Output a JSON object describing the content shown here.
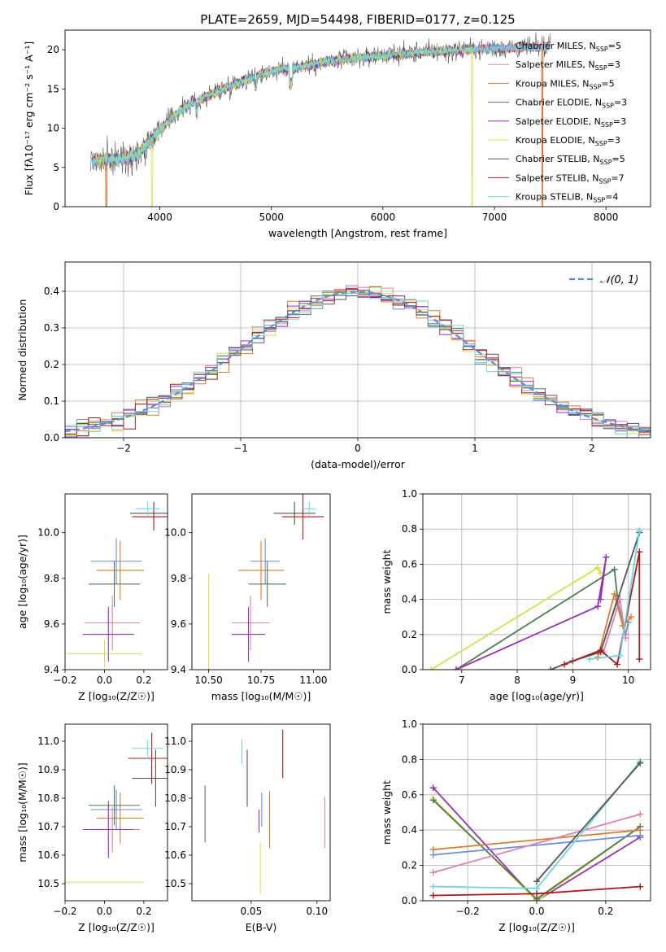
{
  "figure_title": "PLATE=2659, MJD=54498, FIBERID=0177, z=0.125",
  "colors": {
    "Chabrier MILES": "#6a8ed8",
    "Salpeter MILES": "#e37fb0",
    "Kroupa MILES": "#e07a28",
    "Chabrier ELODIE": "#4f7a57",
    "Salpeter ELODIE": "#9a2fb8",
    "Kroupa ELODIE": "#d6e04a",
    "Chabrier STELIB": "#555555",
    "Salpeter STELIB": "#b01818",
    "Kroupa STELIB": "#6ad6e0"
  },
  "chart_data": [
    {
      "id": "spectrum",
      "type": "line",
      "xlabel": "wavelength [Angstrom, rest frame]",
      "ylabel": "Flux [fλ10⁻¹⁷ erg cm⁻² s⁻¹ A⁻¹]",
      "xlim": [
        3150,
        8400
      ],
      "ylim": [
        0,
        22.5
      ],
      "xticks": [
        4000,
        5000,
        6000,
        7000,
        8000
      ],
      "yticks": [
        0,
        5,
        10,
        15,
        20
      ],
      "legend_position": "top-right",
      "legend": [
        {
          "name": "Chabrier MILES",
          "label": "Chabrier MILES, N_SSP=5"
        },
        {
          "name": "Salpeter MILES",
          "label": "Salpeter MILES, N_SSP=3"
        },
        {
          "name": "Kroupa MILES",
          "label": "Kroupa MILES, N_SSP=5"
        },
        {
          "name": "Chabrier ELODIE",
          "label": "Chabrier ELODIE, N_SSP=3"
        },
        {
          "name": "Salpeter ELODIE",
          "label": "Salpeter ELODIE, N_SSP=3"
        },
        {
          "name": "Kroupa ELODIE",
          "label": "Kroupa ELODIE, N_SSP=3"
        },
        {
          "name": "Chabrier STELIB",
          "label": "Chabrier STELIB, N_SSP=5"
        },
        {
          "name": "Salpeter STELIB",
          "label": "Salpeter STELIB, N_SSP=7"
        },
        {
          "name": "Kroupa STELIB",
          "label": "Kroupa STELIB, N_SSP=4"
        }
      ],
      "continuum": {
        "x": [
          3400,
          3600,
          3800,
          4000,
          4200,
          4500,
          4800,
          5000,
          5300,
          5600,
          6000,
          6500,
          7000,
          7400,
          7500
        ],
        "y": [
          5.8,
          6.0,
          6.6,
          9.8,
          12.5,
          14.6,
          16.4,
          17.3,
          17.9,
          18.7,
          19.3,
          19.8,
          20.2,
          20.3,
          20.6
        ]
      },
      "dips": [
        {
          "x": 3520,
          "series": [
            "Salpeter STELIB",
            "Kroupa MILES"
          ]
        },
        {
          "x": 3930,
          "series": [
            "Kroupa ELODIE"
          ]
        },
        {
          "x": 6800,
          "series": [
            "Kroupa ELODIE"
          ]
        },
        {
          "x": 7430,
          "series": [
            "Salpeter STELIB",
            "Kroupa MILES"
          ]
        }
      ]
    },
    {
      "id": "residual-histogram",
      "type": "line",
      "xlabel": "(data-model)/error",
      "ylabel": "Normed distribution",
      "xlim": [
        -2.5,
        2.5
      ],
      "ylim": [
        0,
        0.48
      ],
      "xticks": [
        -2,
        -1,
        0,
        1,
        2
      ],
      "yticks": [
        0.0,
        0.1,
        0.2,
        0.3,
        0.4
      ],
      "grid": true,
      "legend_position": "top-right",
      "reference_curve": {
        "label": "𝒩(0, 1)",
        "mean": 0,
        "sigma": 1,
        "color": "#5b8fd6"
      },
      "bin_width": 0.1
    },
    {
      "id": "age-vs-Z",
      "type": "scatter",
      "xlabel": "Z [log₁₀(Z/Z☉)]",
      "ylabel": "age  [log₁₀(age/yr)]",
      "xlim": [
        -0.2,
        0.32
      ],
      "ylim": [
        9.4,
        10.17
      ],
      "xticks": [
        -0.2,
        0.0,
        0.2
      ],
      "yticks": [
        9.4,
        9.6,
        9.8,
        10.0
      ],
      "points": [
        {
          "series": "Chabrier MILES",
          "x": 0.06,
          "xerr": 0.13,
          "y": 9.875,
          "yerr": 0.1
        },
        {
          "series": "Salpeter MILES",
          "x": 0.04,
          "xerr": 0.14,
          "y": 9.605,
          "yerr": 0.12
        },
        {
          "series": "Kroupa MILES",
          "x": 0.08,
          "xerr": 0.12,
          "y": 9.835,
          "yerr": 0.13
        },
        {
          "series": "Chabrier ELODIE",
          "x": 0.05,
          "xerr": 0.13,
          "y": 9.775,
          "yerr": 0.1
        },
        {
          "series": "Salpeter ELODIE",
          "x": 0.02,
          "xerr": 0.13,
          "y": 9.555,
          "yerr": 0.12
        },
        {
          "series": "Kroupa ELODIE",
          "x": 0.0,
          "xerr": 0.19,
          "y": 9.47,
          "yerr": 0.06
        },
        {
          "series": "Chabrier STELIB",
          "x": 0.25,
          "xerr": 0.12,
          "y": 10.085,
          "yerr": 0.05
        },
        {
          "series": "Salpeter STELIB",
          "x": 0.25,
          "xerr": 0.11,
          "y": 10.07,
          "yerr": 0.06
        },
        {
          "series": "Kroupa STELIB",
          "x": 0.22,
          "xerr": 0.06,
          "y": 10.105,
          "yerr": 0.03
        }
      ]
    },
    {
      "id": "age-vs-mass",
      "type": "scatter",
      "xlabel": "mass [log₁₀(M/M☉)]",
      "ylabel": "",
      "xlim": [
        10.42,
        11.08
      ],
      "ylim": [
        9.4,
        10.17
      ],
      "xticks": [
        10.5,
        10.75,
        11.0
      ],
      "yticks": [
        9.4,
        9.6,
        9.8,
        10.0
      ],
      "points": [
        {
          "series": "Chabrier MILES",
          "x": 10.77,
          "xerr": 0.07,
          "y": 9.875,
          "yerr": 0.1
        },
        {
          "series": "Salpeter MILES",
          "x": 10.7,
          "xerr": 0.09,
          "y": 9.605,
          "yerr": 0.12
        },
        {
          "series": "Kroupa MILES",
          "x": 10.75,
          "xerr": 0.11,
          "y": 9.835,
          "yerr": 0.13
        },
        {
          "series": "Chabrier ELODIE",
          "x": 10.78,
          "xerr": 0.09,
          "y": 9.775,
          "yerr": 0.1
        },
        {
          "series": "Salpeter ELODIE",
          "x": 10.69,
          "xerr": 0.08,
          "y": 9.555,
          "yerr": 0.12
        },
        {
          "series": "Kroupa ELODIE",
          "x": 10.5,
          "xerr": 0.0,
          "y": 9.47,
          "yerr": 0.35
        },
        {
          "series": "Chabrier STELIB",
          "x": 10.91,
          "xerr": 0.1,
          "y": 10.085,
          "yerr": 0.05
        },
        {
          "series": "Salpeter STELIB",
          "x": 10.95,
          "xerr": 0.1,
          "y": 10.07,
          "yerr": 0.1
        },
        {
          "series": "Kroupa STELIB",
          "x": 10.98,
          "xerr": 0.03,
          "y": 10.105,
          "yerr": 0.03
        }
      ]
    },
    {
      "id": "mass-vs-Z",
      "type": "scatter",
      "xlabel": "Z [log₁₀(Z/Z☉)]",
      "ylabel": "mass [log₁₀(M/M☉)]",
      "xlim": [
        -0.2,
        0.32
      ],
      "ylim": [
        10.44,
        11.06
      ],
      "xticks": [
        -0.2,
        0.0,
        0.2
      ],
      "yticks": [
        10.5,
        10.6,
        10.7,
        10.8,
        10.9,
        11.0
      ],
      "points": [
        {
          "series": "Chabrier MILES",
          "x": 0.06,
          "xerr": 0.13,
          "y": 10.76,
          "yerr": 0.07
        },
        {
          "series": "Salpeter MILES",
          "x": 0.04,
          "xerr": 0.14,
          "y": 10.69,
          "yerr": 0.08
        },
        {
          "series": "Kroupa MILES",
          "x": 0.08,
          "xerr": 0.12,
          "y": 10.73,
          "yerr": 0.09
        },
        {
          "series": "Chabrier ELODIE",
          "x": 0.05,
          "xerr": 0.13,
          "y": 10.775,
          "yerr": 0.07
        },
        {
          "series": "Salpeter ELODIE",
          "x": 0.02,
          "xerr": 0.13,
          "y": 10.69,
          "yerr": 0.1
        },
        {
          "series": "Kroupa ELODIE",
          "x": 0.0,
          "xerr": 0.2,
          "y": 10.505,
          "yerr": 0.0
        },
        {
          "series": "Chabrier STELIB",
          "x": 0.26,
          "xerr": 0.12,
          "y": 10.87,
          "yerr": 0.1
        },
        {
          "series": "Salpeter STELIB",
          "x": 0.24,
          "xerr": 0.12,
          "y": 10.94,
          "yerr": 0.09
        },
        {
          "series": "Kroupa STELIB",
          "x": 0.22,
          "xerr": 0.08,
          "y": 10.975,
          "yerr": 0.03
        }
      ]
    },
    {
      "id": "mass-vs-EBV",
      "type": "scatter",
      "xlabel": "E(B-V)",
      "ylabel": "",
      "xlim": [
        0.005,
        0.11
      ],
      "ylim": [
        10.44,
        11.06
      ],
      "xticks": [
        0.05,
        0.1
      ],
      "yticks": [
        10.5,
        10.6,
        10.7,
        10.8,
        10.9,
        11.0
      ],
      "points": [
        {
          "series": "Chabrier ELODIE",
          "x": 0.015,
          "y": 10.745,
          "yerr": 0.1
        },
        {
          "series": "Kroupa STELIB",
          "x": 0.043,
          "y": 10.965,
          "yerr": 0.045
        },
        {
          "series": "Chabrier STELIB",
          "x": 0.047,
          "y": 10.87,
          "yerr": 0.1
        },
        {
          "series": "Salpeter ELODIE",
          "x": 0.056,
          "y": 10.72,
          "yerr": 0.04
        },
        {
          "series": "Kroupa ELODIE",
          "x": 0.057,
          "y": 10.555,
          "yerr": 0.09
        },
        {
          "series": "Chabrier MILES",
          "x": 0.058,
          "y": 10.76,
          "yerr": 0.06
        },
        {
          "series": "Kroupa MILES",
          "x": 0.064,
          "y": 10.725,
          "yerr": 0.1
        },
        {
          "series": "Salpeter STELIB",
          "x": 0.074,
          "y": 10.955,
          "yerr": 0.085
        },
        {
          "series": "Salpeter MILES",
          "x": 0.106,
          "y": 10.715,
          "yerr": 0.09
        }
      ]
    },
    {
      "id": "weight-vs-age",
      "type": "line",
      "xlabel": "age  [log₁₀(age/yr)]",
      "ylabel": "mass weight",
      "xlim": [
        6.3,
        10.4
      ],
      "ylim": [
        0,
        1.0
      ],
      "xticks": [
        7,
        8,
        9,
        10
      ],
      "yticks": [
        0.0,
        0.2,
        0.4,
        0.6,
        0.8,
        1.0
      ],
      "grid": true,
      "series": [
        {
          "name": "Kroupa ELODIE",
          "x": [
            6.45,
            9.45,
            9.5
          ],
          "y": [
            0.0,
            0.58,
            0.55
          ]
        },
        {
          "name": "Chabrier ELODIE",
          "x": [
            6.9,
            9.75,
            9.8
          ],
          "y": [
            0.0,
            0.57,
            0.42
          ]
        },
        {
          "name": "Salpeter ELODIE",
          "x": [
            6.9,
            9.45,
            9.6,
            9.5
          ],
          "y": [
            0.0,
            0.36,
            0.64,
            0.4
          ]
        },
        {
          "name": "Chabrier MILES",
          "x": [
            9.5,
            9.8,
            9.95,
            10.0
          ],
          "y": [
            0.1,
            0.4,
            0.2,
            0.27
          ]
        },
        {
          "name": "Salpeter MILES",
          "x": [
            9.55,
            9.85,
            9.95
          ],
          "y": [
            0.1,
            0.4,
            0.18
          ]
        },
        {
          "name": "Kroupa MILES",
          "x": [
            9.45,
            9.75,
            9.9,
            10.05
          ],
          "y": [
            0.07,
            0.43,
            0.25,
            0.3
          ]
        },
        {
          "name": "Chabrier STELIB",
          "x": [
            8.6,
            9.0,
            9.5,
            10.2
          ],
          "y": [
            0.0,
            0.05,
            0.1,
            0.78
          ]
        },
        {
          "name": "Salpeter STELIB",
          "x": [
            8.85,
            9.5,
            9.8,
            10.2,
            10.2
          ],
          "y": [
            0.03,
            0.11,
            0.03,
            0.67,
            0.06
          ]
        },
        {
          "name": "Kroupa STELIB",
          "x": [
            9.3,
            9.85,
            10.2
          ],
          "y": [
            0.06,
            0.08,
            0.79
          ]
        }
      ]
    },
    {
      "id": "weight-vs-Z",
      "type": "line",
      "xlabel": "Z [log₁₀(Z/Z☉)]",
      "ylabel": "mass weight",
      "xlim": [
        -0.33,
        0.33
      ],
      "ylim": [
        0,
        1.0
      ],
      "xticks": [
        -0.2,
        0.0,
        0.2
      ],
      "yticks": [
        0.0,
        0.2,
        0.4,
        0.6,
        0.8,
        1.0
      ],
      "grid": true,
      "series": [
        {
          "name": "Salpeter ELODIE",
          "x": [
            -0.3,
            0.0,
            0.3
          ],
          "y": [
            0.64,
            0.0,
            0.36
          ]
        },
        {
          "name": "Kroupa ELODIE",
          "x": [
            -0.3,
            0.0,
            0.3
          ],
          "y": [
            0.58,
            0.0,
            0.42
          ]
        },
        {
          "name": "Chabrier ELODIE",
          "x": [
            -0.3,
            0.0,
            0.3
          ],
          "y": [
            0.57,
            0.01,
            0.42
          ]
        },
        {
          "name": "Kroupa MILES",
          "x": [
            -0.3,
            0.3
          ],
          "y": [
            0.29,
            0.4
          ]
        },
        {
          "name": "Chabrier MILES",
          "x": [
            -0.3,
            0.3
          ],
          "y": [
            0.26,
            0.37
          ]
        },
        {
          "name": "Salpeter MILES",
          "x": [
            -0.3,
            0.3
          ],
          "y": [
            0.16,
            0.49
          ]
        },
        {
          "name": "Kroupa STELIB",
          "x": [
            -0.3,
            0.0,
            0.3
          ],
          "y": [
            0.08,
            0.07,
            0.79
          ]
        },
        {
          "name": "Chabrier STELIB",
          "x": [
            0.0,
            0.3
          ],
          "y": [
            0.11,
            0.78
          ]
        },
        {
          "name": "Salpeter STELIB",
          "x": [
            -0.3,
            0.0,
            0.3
          ],
          "y": [
            0.03,
            0.04,
            0.08
          ]
        }
      ]
    }
  ]
}
